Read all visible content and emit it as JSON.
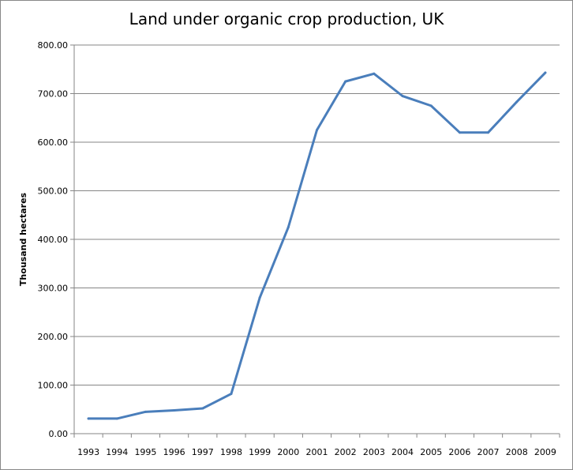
{
  "chart_data": {
    "type": "line",
    "title": "Land under organic crop production, UK",
    "xlabel": "",
    "ylabel": "Thousand hectares",
    "categories": [
      "1993",
      "1994",
      "1995",
      "1996",
      "1997",
      "1998",
      "1999",
      "2000",
      "2001",
      "2002",
      "2003",
      "2004",
      "2005",
      "2006",
      "2007",
      "2008",
      "2009"
    ],
    "series": [
      {
        "values": [
          31,
          31,
          45,
          48,
          52,
          82,
          280,
          425,
          625,
          725,
          741,
          695,
          675,
          620,
          620,
          683,
          743
        ],
        "color": "#4a7ebb"
      }
    ],
    "ylim": [
      0,
      800
    ],
    "yticks": [
      0,
      100,
      200,
      300,
      400,
      500,
      600,
      700,
      800
    ],
    "ytick_labels": [
      "0.00",
      "100.00",
      "200.00",
      "300.00",
      "400.00",
      "500.00",
      "600.00",
      "700.00",
      "800.00"
    ],
    "grid": "horizontal",
    "legend": "none",
    "gridline_color": "#868686",
    "axis_color": "#868686"
  }
}
